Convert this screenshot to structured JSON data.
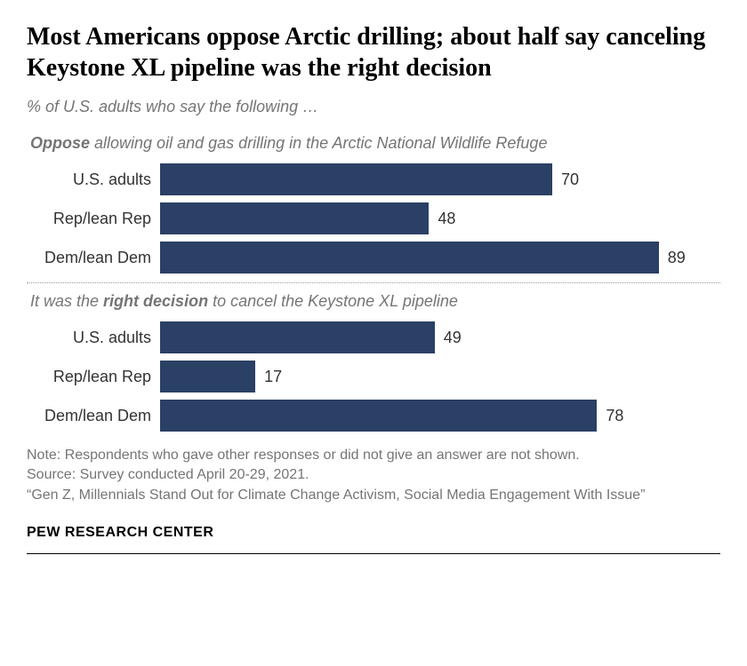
{
  "title": "Most Americans oppose Arctic drilling; about half say canceling Keystone XL pipeline was the right decision",
  "subtitle": "% of U.S. adults who say the following …",
  "title_fontsize": 28,
  "subtitle_fontsize": 18,
  "question_fontsize": 18,
  "label_fontsize": 18,
  "value_fontsize": 18,
  "note_fontsize": 16,
  "brand_fontsize": 16,
  "bar_color": "#2a4065",
  "text_color": "#333333",
  "muted_color": "#757575",
  "background_color": "#ffffff",
  "max_scale": 100,
  "groups": [
    {
      "question_prefix": "",
      "question_keyword": "Oppose",
      "question_rest": " allowing oil and gas drilling in the Arctic National Wildlife Refuge",
      "rows": [
        {
          "label": "U.S. adults",
          "value": 70
        },
        {
          "label": "Rep/lean Rep",
          "value": 48
        },
        {
          "label": "Dem/lean Dem",
          "value": 89
        }
      ]
    },
    {
      "question_prefix": "It was the ",
      "question_keyword": "right decision",
      "question_rest": " to cancel the Keystone XL pipeline",
      "rows": [
        {
          "label": "U.S. adults",
          "value": 49
        },
        {
          "label": "Rep/lean Rep",
          "value": 17
        },
        {
          "label": "Dem/lean Dem",
          "value": 78
        }
      ]
    }
  ],
  "notes": [
    "Note: Respondents who gave other responses or did not give an answer are not shown.",
    "Source: Survey conducted April 20-29, 2021.",
    "“Gen Z, Millennials Stand Out for Climate Change Activism, Social Media Engagement With Issue”"
  ],
  "brand": "PEW RESEARCH CENTER"
}
